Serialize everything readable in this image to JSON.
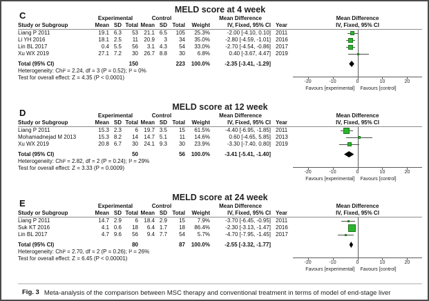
{
  "figure_caption": {
    "label": "Fig. 3",
    "text": "Meta-analysis of the comparison between MSC therapy and conventional treatment in terms of model of end-stage liver disease (MELD) score."
  },
  "common": {
    "group_experimental": "Experimental",
    "group_control": "Control",
    "mean_difference_header": "Mean Difference",
    "effect_model_header": "IV, Fixed, 95% CI",
    "columns": {
      "study": "Study or Subgroup",
      "mean": "Mean",
      "sd": "SD",
      "total": "Total",
      "weight": "Weight",
      "year": "Year"
    },
    "total_label": "Total (95% CI)",
    "favours_left": "Favours [experimental]",
    "favours_right": "Favours [control]",
    "axis_ticks": [
      -20,
      -10,
      0,
      10,
      20
    ],
    "axis_range": [
      -26,
      26
    ],
    "colors": {
      "square_fill": "#2db42d",
      "square_border": "#1d771d",
      "diamond": "#000000"
    }
  },
  "chart_data": [
    {
      "type": "forest",
      "label": "C",
      "title": "MELD score at 4 week",
      "studies": [
        {
          "name": "Liang P 2011",
          "exp_mean": "19.1",
          "exp_sd": "6.3",
          "exp_total": "53",
          "ctl_mean": "21.1",
          "ctl_sd": "6.5",
          "ctl_total": "105",
          "weight": "25.3%",
          "weight_pct": 25.3,
          "md": -2.0,
          "ci_low": -4.1,
          "ci_high": 0.1,
          "ci_text": "-2.00 [-4.10, 0.10]",
          "year": "2011"
        },
        {
          "name": "Li YH 2016",
          "exp_mean": "18.1",
          "exp_sd": "2.5",
          "exp_total": "11",
          "ctl_mean": "20.9",
          "ctl_sd": "3",
          "ctl_total": "34",
          "weight": "35.0%",
          "weight_pct": 35.0,
          "md": -2.8,
          "ci_low": -4.59,
          "ci_high": -1.01,
          "ci_text": "-2.80 [-4.59, -1.01]",
          "year": "2016"
        },
        {
          "name": "Lin BL 2017",
          "exp_mean": "0.4",
          "exp_sd": "5.5",
          "exp_total": "56",
          "ctl_mean": "3.1",
          "ctl_sd": "4.3",
          "ctl_total": "54",
          "weight": "33.0%",
          "weight_pct": 33.0,
          "md": -2.7,
          "ci_low": -4.54,
          "ci_high": -0.86,
          "ci_text": "-2.70 [-4.54, -0.86]",
          "year": "2017"
        },
        {
          "name": "Xu WX 2019",
          "exp_mean": "27.1",
          "exp_sd": "7.2",
          "exp_total": "30",
          "ctl_mean": "26.7",
          "ctl_sd": "8.8",
          "ctl_total": "30",
          "weight": "6.8%",
          "weight_pct": 6.8,
          "md": 0.4,
          "ci_low": -3.67,
          "ci_high": 4.47,
          "ci_text": "0.40 [-3.67, 4.47]",
          "year": "2019"
        }
      ],
      "total": {
        "exp_total": "150",
        "ctl_total": "223",
        "weight": "100.0%",
        "md": -2.35,
        "ci_low": -3.41,
        "ci_high": -1.29,
        "ci_text": "-2.35 [-3.41, -1.29]"
      },
      "heterogeneity": "Heterogeneity: Chi² = 2.24, df = 3 (P = 0.52); I² = 0%",
      "overall_effect": "Test for overall effect: Z = 4.35 (P < 0.0001)"
    },
    {
      "type": "forest",
      "label": "D",
      "title": "MELD score at 12 week",
      "studies": [
        {
          "name": "Liang P 2011",
          "exp_mean": "15.3",
          "exp_sd": "2.3",
          "exp_total": "6",
          "ctl_mean": "19.7",
          "ctl_sd": "3.5",
          "ctl_total": "15",
          "weight": "61.5%",
          "weight_pct": 61.5,
          "md": -4.4,
          "ci_low": -6.95,
          "ci_high": -1.85,
          "ci_text": "-4.40 [-6.95, -1.85]",
          "year": "2011"
        },
        {
          "name": "Mohamadnejad M 2013",
          "exp_mean": "15.3",
          "exp_sd": "8.2",
          "exp_total": "14",
          "ctl_mean": "14.7",
          "ctl_sd": "5.1",
          "ctl_total": "11",
          "weight": "14.6%",
          "weight_pct": 14.6,
          "md": 0.6,
          "ci_low": -4.65,
          "ci_high": 5.85,
          "ci_text": "0.60 [-4.65, 5.85]",
          "year": "2013"
        },
        {
          "name": "Xu WX 2019",
          "exp_mean": "20.8",
          "exp_sd": "6.7",
          "exp_total": "30",
          "ctl_mean": "24.1",
          "ctl_sd": "9.3",
          "ctl_total": "30",
          "weight": "23.9%",
          "weight_pct": 23.9,
          "md": -3.3,
          "ci_low": -7.4,
          "ci_high": 0.8,
          "ci_text": "-3.30 [-7.40, 0.80]",
          "year": "2019"
        }
      ],
      "total": {
        "exp_total": "50",
        "ctl_total": "56",
        "weight": "100.0%",
        "md": -3.41,
        "ci_low": -5.41,
        "ci_high": -1.4,
        "ci_text": "-3.41 [-5.41, -1.40]"
      },
      "heterogeneity": "Heterogeneity: Chi² = 2.82, df = 2 (P = 0.24); I² = 29%",
      "overall_effect": "Test for overall effect: Z = 3.33 (P = 0.0009)"
    },
    {
      "type": "forest",
      "label": "E",
      "title": "MELD score at 24 week",
      "studies": [
        {
          "name": "Liang P 2011",
          "exp_mean": "14.7",
          "exp_sd": "2.9",
          "exp_total": "6",
          "ctl_mean": "18.4",
          "ctl_sd": "2.9",
          "ctl_total": "15",
          "weight": "7.9%",
          "weight_pct": 7.9,
          "md": -3.7,
          "ci_low": -6.45,
          "ci_high": -0.95,
          "ci_text": "-3.70 [-6.45, -0.95]",
          "year": "2011"
        },
        {
          "name": "Suk KT 2016",
          "exp_mean": "4.1",
          "exp_sd": "0.6",
          "exp_total": "18",
          "ctl_mean": "6.4",
          "ctl_sd": "1.7",
          "ctl_total": "18",
          "weight": "86.4%",
          "weight_pct": 86.4,
          "md": -2.3,
          "ci_low": -3.13,
          "ci_high": -1.47,
          "ci_text": "-2.30 [-3.13, -1.47]",
          "year": "2016"
        },
        {
          "name": "Lin BL 2017",
          "exp_mean": "4.7",
          "exp_sd": "9.6",
          "exp_total": "56",
          "ctl_mean": "9.4",
          "ctl_sd": "7.7",
          "ctl_total": "54",
          "weight": "5.7%",
          "weight_pct": 5.7,
          "md": -4.7,
          "ci_low": -7.95,
          "ci_high": -1.45,
          "ci_text": "-4.70 [-7.95, -1.45]",
          "year": "2017"
        }
      ],
      "total": {
        "exp_total": "80",
        "ctl_total": "87",
        "weight": "100.0%",
        "md": -2.55,
        "ci_low": -3.32,
        "ci_high": -1.77,
        "ci_text": "-2.55 [-3.32, -1.77]"
      },
      "heterogeneity": "Heterogeneity: Chi² = 2.70, df = 2 (P = 0.26); I² = 26%",
      "overall_effect": "Test for overall effect: Z = 6.45 (P < 0.00001)"
    }
  ]
}
